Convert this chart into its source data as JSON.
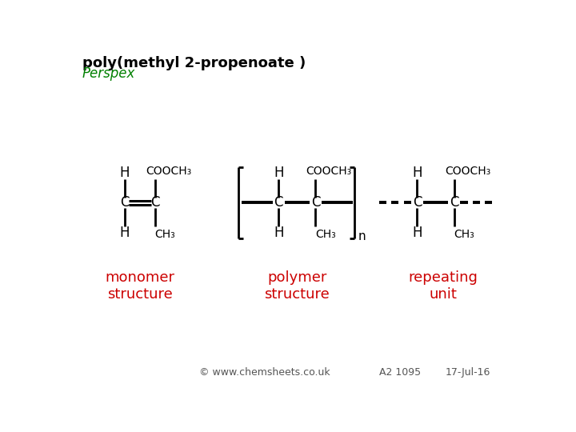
{
  "title": "poly(methyl 2-propenoate )",
  "subtitle": "Perspex",
  "title_color": "#000000",
  "subtitle_color": "#008000",
  "title_fontsize": 13,
  "subtitle_fontsize": 12,
  "label_monomer": "monomer\nstructure",
  "label_polymer": "polymer\nstructure",
  "label_repeating": "repeating\nunit",
  "label_color": "#cc0000",
  "label_fontsize": 13,
  "footer_copyright": "© www.chemsheets.co.uk",
  "footer_code": "A2 1095",
  "footer_date": "17-Jul-16",
  "footer_fontsize": 9,
  "bg_color": "#ffffff"
}
